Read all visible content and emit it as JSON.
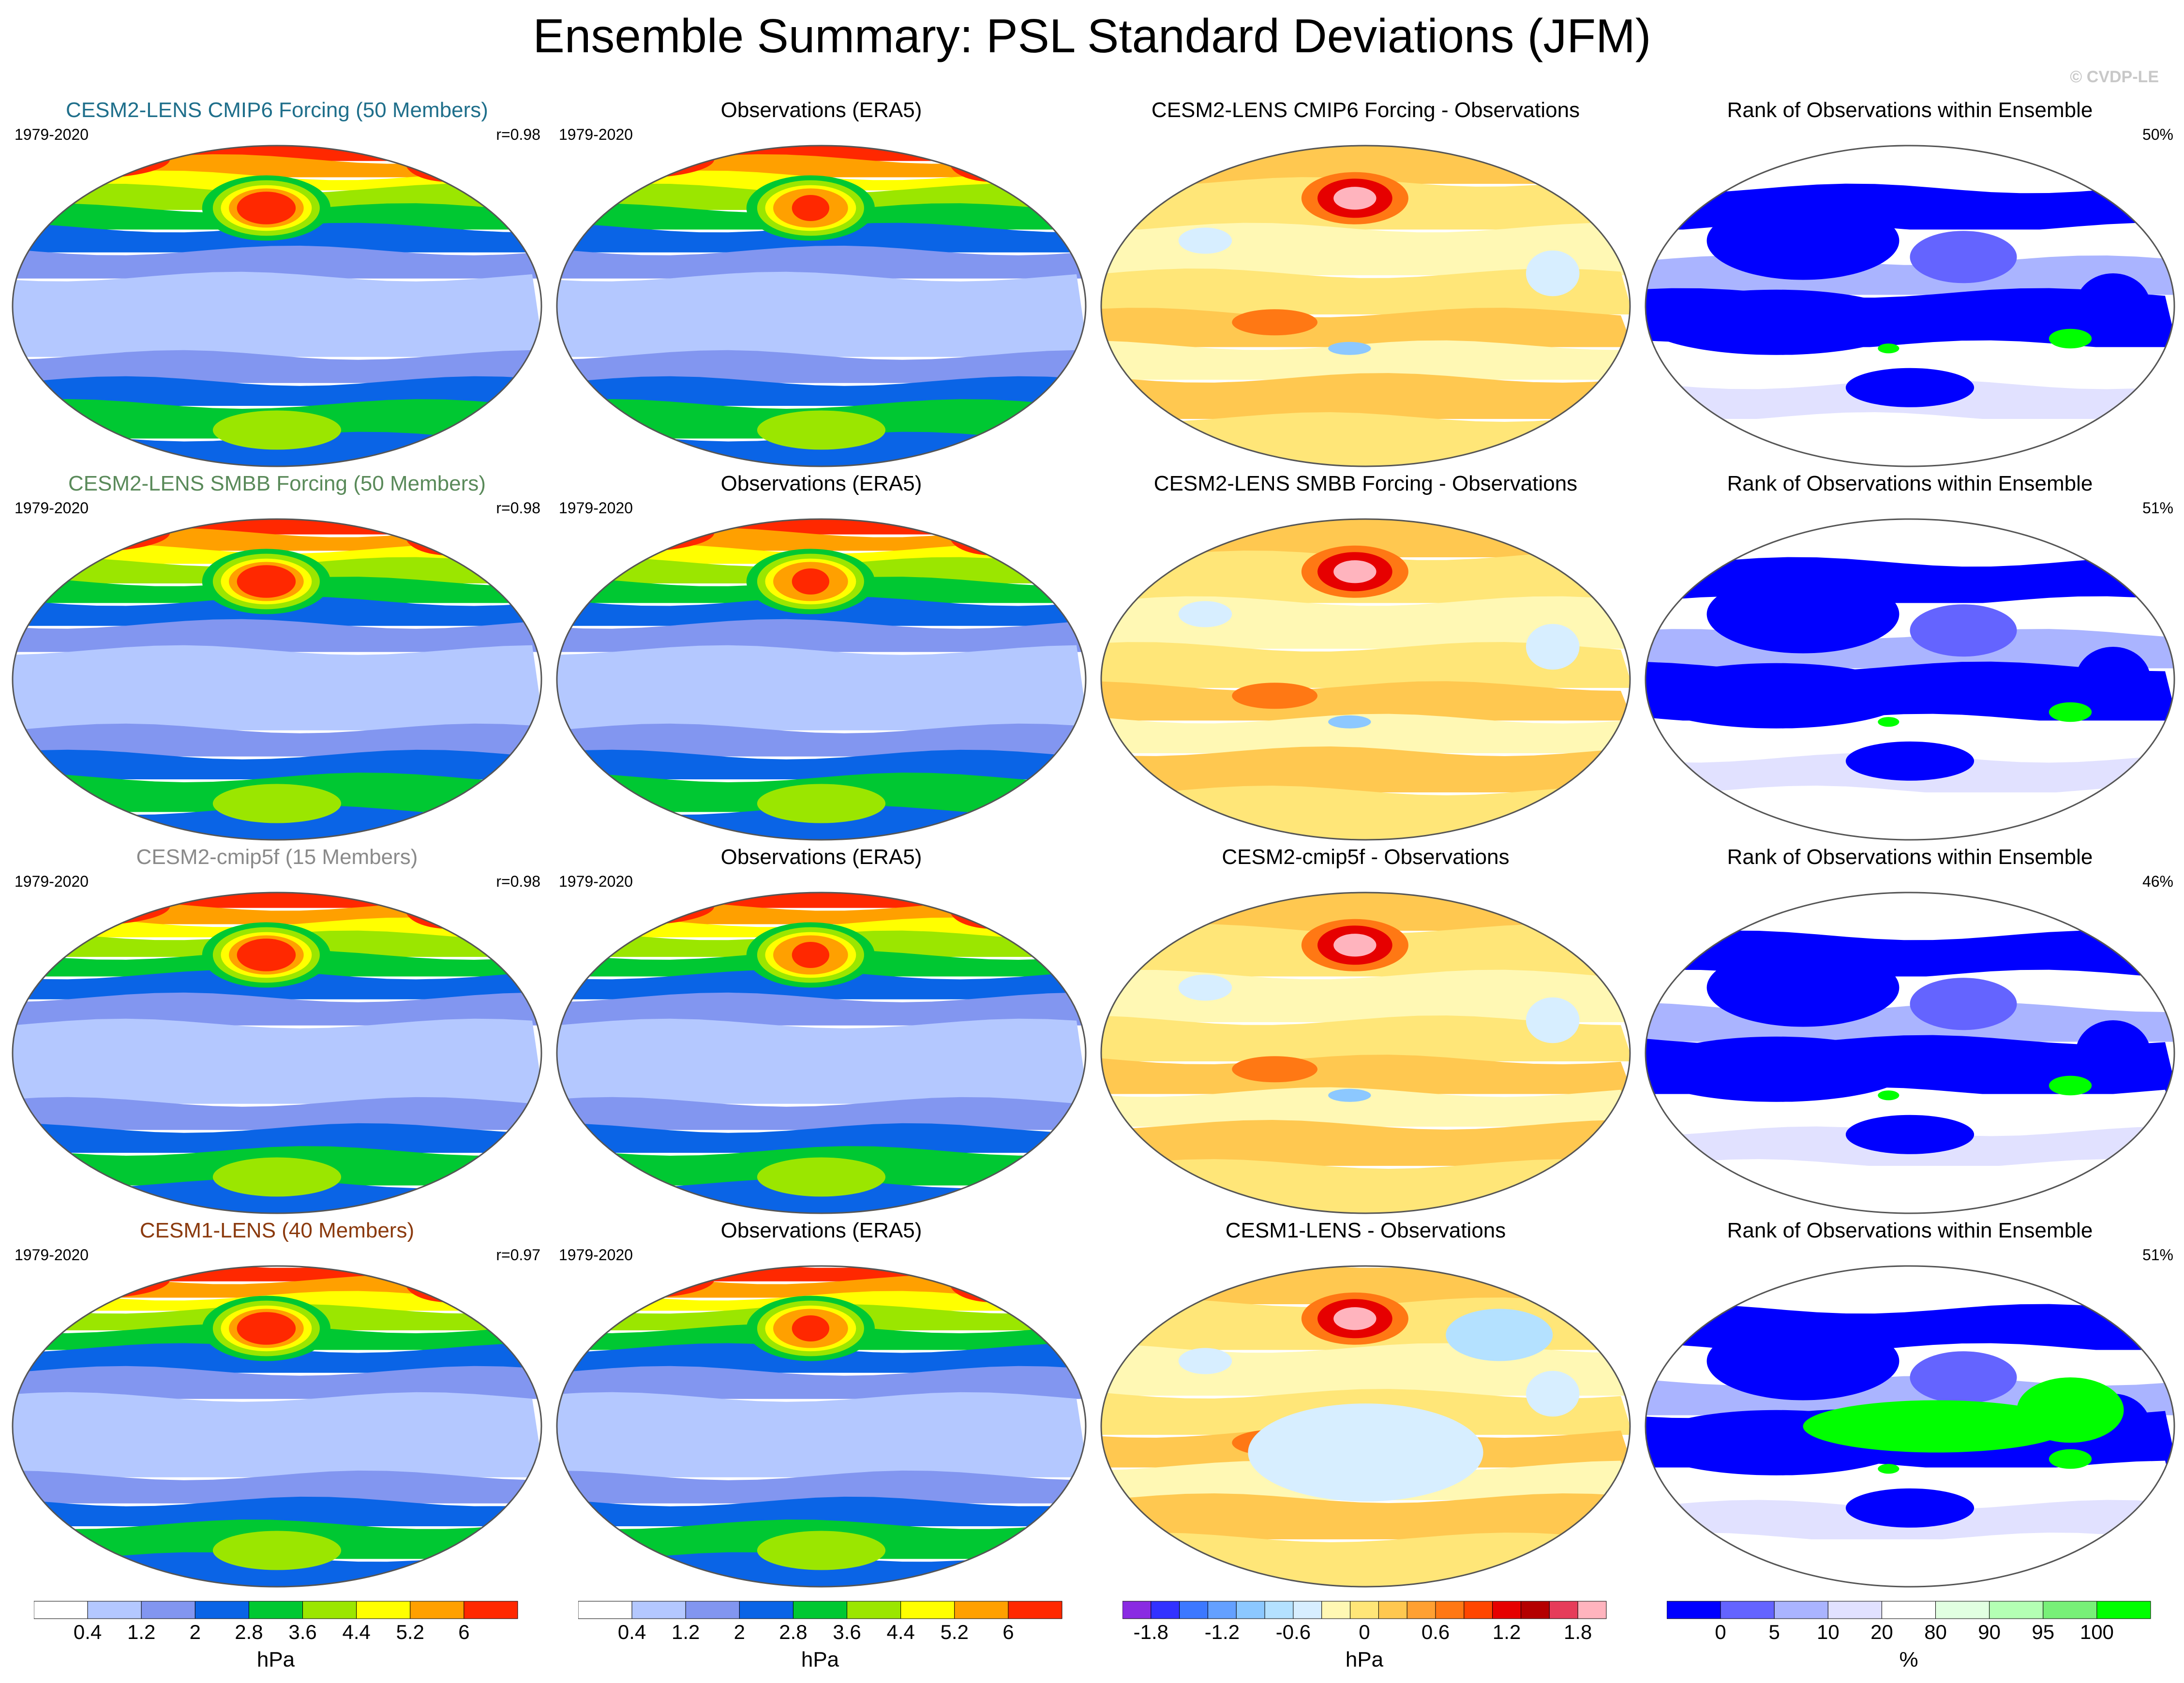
{
  "header": {
    "title": "Ensemble Summary: PSL Standard Deviations (JFM)",
    "copyright": "© CVDP-LE"
  },
  "rows": [
    {
      "model": {
        "title": "CESM2-LENS CMIP6 Forcing (50 Members)",
        "title_color": "#1f6f8b",
        "years": "1979-2020",
        "r": "r=0.98"
      },
      "obs": {
        "title": "Observations (ERA5)",
        "years": "1979-2020"
      },
      "diff": {
        "title": "CESM2-LENS CMIP6 Forcing - Observations"
      },
      "rank": {
        "title": "Rank of Observations within Ensemble",
        "pct": "50%"
      }
    },
    {
      "model": {
        "title": "CESM2-LENS SMBB Forcing (50 Members)",
        "title_color": "#5a8a5a",
        "years": "1979-2020",
        "r": "r=0.98"
      },
      "obs": {
        "title": "Observations (ERA5)",
        "years": "1979-2020"
      },
      "diff": {
        "title": "CESM2-LENS SMBB Forcing - Observations"
      },
      "rank": {
        "title": "Rank of Observations within Ensemble",
        "pct": "51%"
      }
    },
    {
      "model": {
        "title": "CESM2-cmip5f (15 Members)",
        "title_color": "#8a8a8a",
        "years": "1979-2020",
        "r": "r=0.98"
      },
      "obs": {
        "title": "Observations (ERA5)",
        "years": "1979-2020"
      },
      "diff": {
        "title": "CESM2-cmip5f - Observations"
      },
      "rank": {
        "title": "Rank of Observations within Ensemble",
        "pct": "46%"
      }
    },
    {
      "model": {
        "title": "CESM1-LENS (40 Members)",
        "title_color": "#8b3a0e",
        "years": "1979-2020",
        "r": "r=0.97"
      },
      "obs": {
        "title": "Observations (ERA5)",
        "years": "1979-2020"
      },
      "diff": {
        "title": "CESM1-LENS - Observations"
      },
      "rank": {
        "title": "Rank of Observations within Ensemble",
        "pct": "51%"
      }
    }
  ],
  "colorbars": {
    "sd": {
      "colors": [
        "#ffffff",
        "#b4c8ff",
        "#8296f0",
        "#0a64e6",
        "#00c832",
        "#9be600",
        "#ffff00",
        "#ffa000",
        "#ff2800"
      ],
      "ticks": [
        "0.4",
        "1.2",
        "2",
        "2.8",
        "3.6",
        "4.4",
        "5.2",
        "6"
      ],
      "unit": "hPa"
    },
    "diff": {
      "colors": [
        "#8a2be2",
        "#3232ff",
        "#3c78ff",
        "#64a0ff",
        "#8cc8ff",
        "#b4e1ff",
        "#d7eeff",
        "#fff8b4",
        "#ffe678",
        "#ffc850",
        "#ffa032",
        "#ff7814",
        "#ff4600",
        "#e60000",
        "#b40000",
        "#e63c5a",
        "#ffb4be"
      ],
      "ticks": [
        "-1.8",
        "-1.2",
        "-0.6",
        "0",
        "0.6",
        "1.2",
        "1.8"
      ],
      "unit": "hPa"
    },
    "rank": {
      "colors": [
        "#0000ff",
        "#6464ff",
        "#aab4ff",
        "#e1e1ff",
        "#ffffff",
        "#e1ffe1",
        "#b4ffb4",
        "#78f078",
        "#00ff00"
      ],
      "ticks": [
        "0",
        "5",
        "10",
        "20",
        "80",
        "90",
        "95",
        "100"
      ],
      "unit": "%"
    }
  }
}
